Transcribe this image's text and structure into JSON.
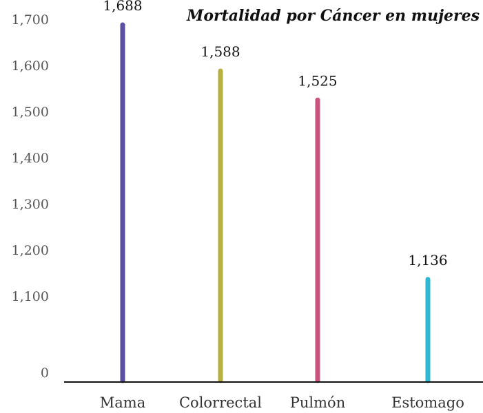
{
  "chart_data": {
    "type": "bar",
    "title": "Mortalidad por Cáncer en mujeres",
    "xlabel": "",
    "ylabel": "",
    "categories": [
      "Mama",
      "Colorrectal",
      "Pulmón",
      "Estomago"
    ],
    "values": [
      1688,
      1588,
      1525,
      1136
    ],
    "value_labels": [
      "1,688",
      "1,588",
      "1,525",
      "1,136"
    ],
    "colors": [
      "#5a4fa0",
      "#b8b041",
      "#c9557f",
      "#2fb6d0"
    ],
    "axis_break": true,
    "y_ticks": [
      {
        "value": 0,
        "label": "0"
      },
      {
        "value": 1100,
        "label": "1,100"
      },
      {
        "value": 1200,
        "label": "1,200"
      },
      {
        "value": 1300,
        "label": "1,300"
      },
      {
        "value": 1400,
        "label": "1,400"
      },
      {
        "value": 1500,
        "label": "1,500"
      },
      {
        "value": 1600,
        "label": "1,600"
      },
      {
        "value": 1700,
        "label": "1,700"
      }
    ],
    "grid": false,
    "legend": "none"
  }
}
